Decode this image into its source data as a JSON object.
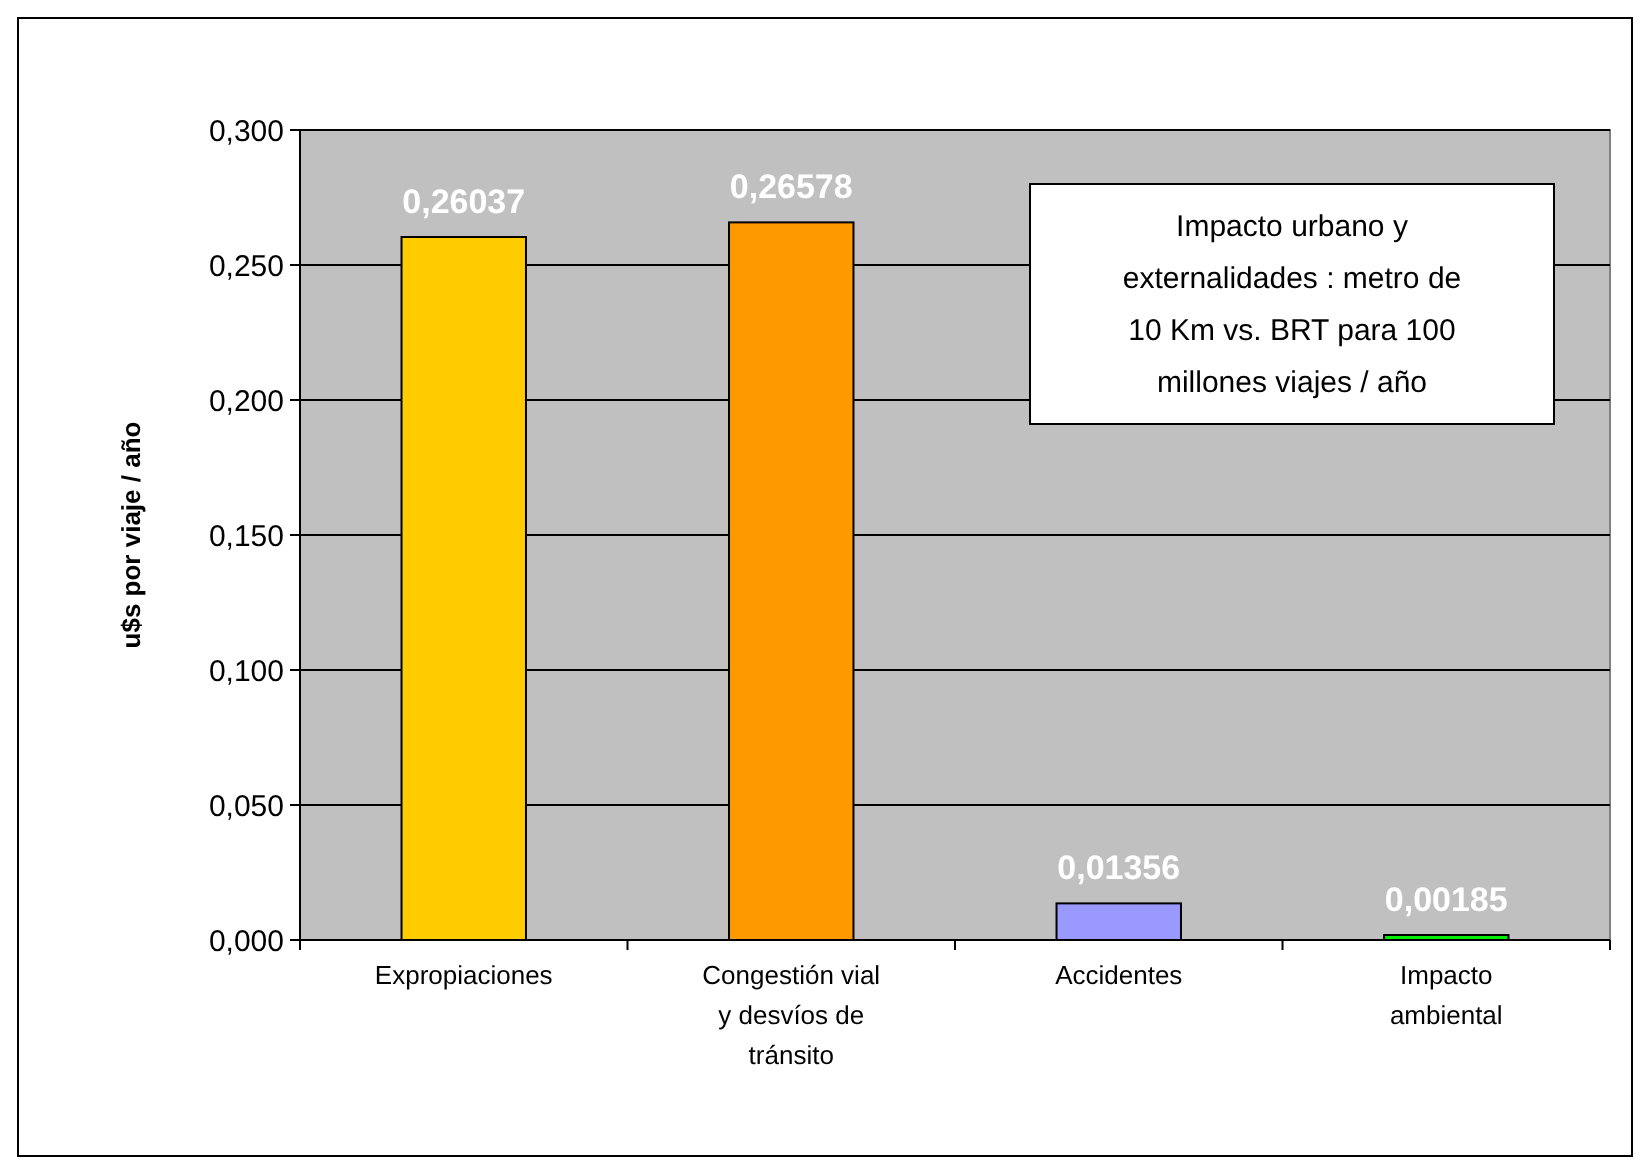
{
  "chart_data": {
    "type": "bar",
    "ylabel": "u$s por viaje / año",
    "categories": [
      "Expropiaciones",
      "Congestión vial y desvíos de tránsito",
      "Accidentes",
      "Impacto ambiental"
    ],
    "values": [
      0.26037,
      0.26578,
      0.01356,
      0.00185
    ],
    "colors": [
      "#ffcc00",
      "#ff9900",
      "#9999ff",
      "#00ee00"
    ],
    "value_labels": [
      "0,26037",
      "0,26578",
      "0,01356",
      "0,00185"
    ],
    "ylim": [
      0,
      0.3
    ],
    "yticks": [
      {
        "value": 0,
        "label": "0,000"
      },
      {
        "value": 0.05,
        "label": "0,050"
      },
      {
        "value": 0.1,
        "label": "0,100"
      },
      {
        "value": 0.15,
        "label": "0,150"
      },
      {
        "value": 0.2,
        "label": "0,200"
      },
      {
        "value": 0.25,
        "label": "0,250"
      },
      {
        "value": 0.3,
        "label": "0,300"
      }
    ],
    "grid": "y",
    "annotations": [
      "Impacto urbano y externalidades : metro de 10 Km vs. BRT para 100 millones viajes / año"
    ]
  }
}
